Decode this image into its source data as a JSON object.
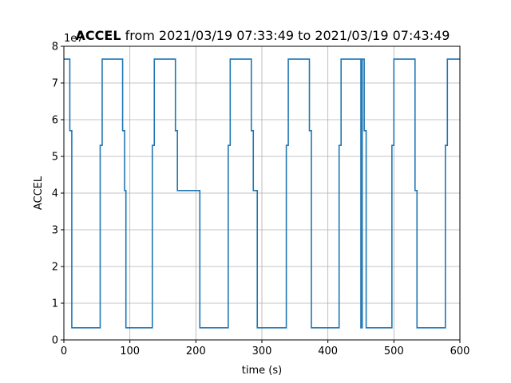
{
  "chart_data": {
    "type": "line",
    "title": {
      "bold": "ACCEL",
      "rest": " from 2021/03/19 07:33:49 to 2021/03/19 07:43:49"
    },
    "xlabel": "time (s)",
    "ylabel": "ACCEL",
    "y_offset_text": "1e7",
    "xlim": [
      0,
      600
    ],
    "ylim": [
      0,
      8
    ],
    "xticks": [
      0,
      100,
      200,
      300,
      400,
      500,
      600
    ],
    "yticks": [
      0,
      1,
      2,
      3,
      4,
      5,
      6,
      7,
      8
    ],
    "grid": true,
    "colors": {
      "line": "#1f77b4",
      "grid": "#b0b0b0"
    },
    "series": [
      {
        "x": [
          0,
          9,
          9,
          12,
          12,
          55,
          55,
          58,
          58,
          89,
          89,
          92,
          92,
          94,
          94,
          134,
          134,
          137,
          137,
          169,
          169,
          172,
          172,
          206,
          206,
          249,
          249,
          252,
          252,
          284,
          284,
          287,
          287,
          293,
          293,
          337,
          337,
          340,
          340,
          372,
          372,
          375,
          375,
          417,
          417,
          420,
          420,
          450,
          450,
          452,
          452,
          455,
          455,
          458,
          458,
          497,
          497,
          500,
          500,
          532,
          532,
          535,
          535,
          578,
          578,
          581,
          581,
          600
        ],
        "y": [
          7.65,
          7.65,
          5.7,
          5.7,
          0.33,
          0.33,
          5.3,
          5.3,
          7.65,
          7.65,
          5.7,
          5.7,
          4.07,
          4.07,
          0.33,
          0.33,
          5.3,
          5.3,
          7.65,
          7.65,
          5.7,
          5.7,
          4.07,
          4.07,
          0.33,
          0.33,
          5.3,
          5.3,
          7.65,
          7.65,
          5.7,
          5.7,
          4.07,
          4.07,
          0.33,
          0.33,
          5.3,
          5.3,
          7.65,
          7.65,
          5.7,
          5.7,
          0.33,
          0.33,
          5.3,
          5.3,
          7.65,
          7.65,
          0.33,
          0.33,
          7.65,
          7.65,
          5.7,
          5.7,
          0.33,
          0.33,
          5.3,
          5.3,
          7.65,
          7.65,
          4.07,
          4.07,
          0.33,
          0.33,
          5.3,
          5.3,
          7.65,
          7.65
        ]
      }
    ]
  }
}
